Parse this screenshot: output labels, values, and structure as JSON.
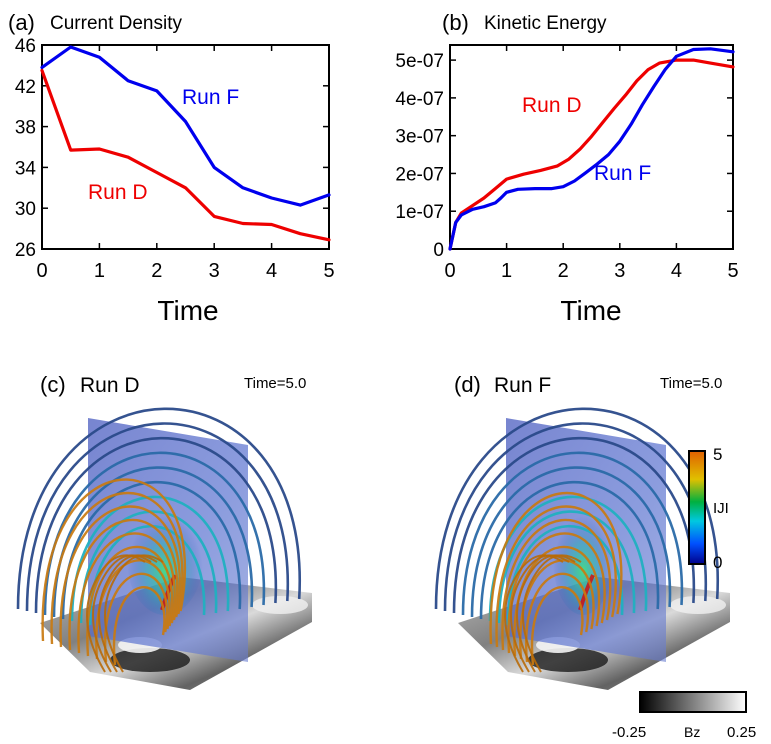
{
  "chart_data": [
    {
      "panel": "(a)",
      "type": "line",
      "title": "Current Density",
      "xlabel": "Time",
      "ylabel": "",
      "xlim": [
        0,
        5
      ],
      "ylim": [
        26,
        46
      ],
      "xticks": [
        "0",
        "1",
        "2",
        "3",
        "4",
        "5"
      ],
      "yticks": [
        "26",
        "30",
        "34",
        "38",
        "42",
        "46"
      ],
      "series": [
        {
          "name": "Run F",
          "color": "#0000ee",
          "x": [
            0,
            0.5,
            1,
            1.5,
            2,
            2.5,
            3,
            3.5,
            4,
            4.5,
            5
          ],
          "y": [
            43.8,
            45.8,
            44.8,
            42.5,
            41.5,
            38.5,
            34.0,
            32.0,
            31.0,
            30.3,
            31.3
          ]
        },
        {
          "name": "Run D",
          "color": "#ee0000",
          "x": [
            0,
            0.5,
            1,
            1.5,
            2,
            2.5,
            3,
            3.5,
            4,
            4.5,
            5
          ],
          "y": [
            43.5,
            35.7,
            35.8,
            35.0,
            33.5,
            32.0,
            29.2,
            28.5,
            28.4,
            27.5,
            26.9
          ]
        }
      ]
    },
    {
      "panel": "(b)",
      "type": "line",
      "title": "Kinetic Energy",
      "xlabel": "Time",
      "ylabel": "",
      "xlim": [
        0,
        5
      ],
      "ylim": [
        0,
        5.4e-07
      ],
      "xticks": [
        "0",
        "1",
        "2",
        "3",
        "4",
        "5"
      ],
      "yticks": [
        "0",
        "1e-07",
        "2e-07",
        "3e-07",
        "4e-07",
        "5e-07"
      ],
      "series": [
        {
          "name": "Run D",
          "color": "#ee0000",
          "x": [
            0,
            0.1,
            0.2,
            0.4,
            0.6,
            0.8,
            1.0,
            1.3,
            1.6,
            1.9,
            2.1,
            2.3,
            2.5,
            2.7,
            2.9,
            3.1,
            3.3,
            3.5,
            3.7,
            4.0,
            4.3,
            4.6,
            5.0
          ],
          "y": [
            0,
            7e-08,
            9.5e-08,
            1.15e-07,
            1.35e-07,
            1.6e-07,
            1.85e-07,
            1.98e-07,
            2.08e-07,
            2.2e-07,
            2.38e-07,
            2.65e-07,
            2.98e-07,
            3.35e-07,
            3.72e-07,
            4.07e-07,
            4.45e-07,
            4.75e-07,
            4.92e-07,
            5e-07,
            5e-07,
            4.92e-07,
            4.82e-07
          ]
        },
        {
          "name": "Run F",
          "color": "#0000ee",
          "x": [
            0,
            0.1,
            0.2,
            0.4,
            0.6,
            0.8,
            0.9,
            1.0,
            1.2,
            1.5,
            1.8,
            2.0,
            2.2,
            2.4,
            2.6,
            2.8,
            3.0,
            3.2,
            3.4,
            3.6,
            3.8,
            4.0,
            4.3,
            4.6,
            5.0
          ],
          "y": [
            0,
            7e-08,
            9e-08,
            1.05e-07,
            1.12e-07,
            1.22e-07,
            1.35e-07,
            1.5e-07,
            1.58e-07,
            1.6e-07,
            1.6e-07,
            1.65e-07,
            1.8e-07,
            2.02e-07,
            2.25e-07,
            2.5e-07,
            2.85e-07,
            3.3e-07,
            3.82e-07,
            4.3e-07,
            4.75e-07,
            5.1e-07,
            5.28e-07,
            5.3e-07,
            5.22e-07
          ]
        }
      ]
    }
  ],
  "panels": {
    "c": {
      "label": "(c)",
      "run": "Run D",
      "time": "Time=5.0"
    },
    "d": {
      "label": "(d)",
      "run": "Run F",
      "time": "Time=5.0"
    }
  },
  "colorbar_j": {
    "max": "5",
    "label": "IJI",
    "min": "0"
  },
  "colorbar_bz": {
    "min": "-0.25",
    "label": "Bz",
    "max": "0.25"
  },
  "colors": {
    "field_lines_outer": "#2a4a8a",
    "field_lines_inner": "#c97a10",
    "slice_plane": "#5a6ec8"
  }
}
